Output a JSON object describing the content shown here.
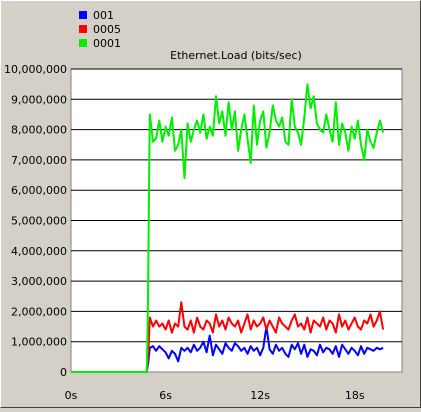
{
  "chart_data": {
    "type": "line",
    "title": "Ethernet.Load (bits/sec)",
    "ylim": [
      0,
      10000000
    ],
    "yticks": [
      0,
      1000000,
      2000000,
      3000000,
      4000000,
      5000000,
      6000000,
      7000000,
      8000000,
      9000000,
      10000000
    ],
    "ytick_labels": [
      "0",
      "1,000,000",
      "2,000,000",
      "3,000,000",
      "4,000,000",
      "5,000,000",
      "6,000,000",
      "7,000,000",
      "8,000,000",
      "9,000,000",
      "10,000,000"
    ],
    "xlim": [
      0,
      21
    ],
    "xticks": [
      0,
      6,
      12,
      18
    ],
    "xtick_labels": [
      "0s",
      "6s",
      "12s",
      "18s"
    ],
    "grid": "horizontal",
    "legend_position": "top-left",
    "series": [
      {
        "name": "001",
        "color": "#0000ff",
        "x": [
          0,
          0.5,
          1,
          1.5,
          2,
          2.5,
          3,
          3.5,
          4,
          4.5,
          4.8,
          4.9,
          5.0,
          5.2,
          5.4,
          5.6,
          5.8,
          6.0,
          6.2,
          6.4,
          6.6,
          6.8,
          7.0,
          7.2,
          7.4,
          7.6,
          7.8,
          8.0,
          8.2,
          8.4,
          8.6,
          8.8,
          9.0,
          9.2,
          9.4,
          9.6,
          9.8,
          10.0,
          10.2,
          10.4,
          10.6,
          10.8,
          11.0,
          11.2,
          11.4,
          11.6,
          11.8,
          12.0,
          12.2,
          12.4,
          12.6,
          12.8,
          13.0,
          13.2,
          13.4,
          13.6,
          13.8,
          14.0,
          14.2,
          14.4,
          14.6,
          14.8,
          15.0,
          15.2,
          15.4,
          15.6,
          15.8,
          16.0,
          16.2,
          16.4,
          16.6,
          16.8,
          17.0,
          17.2,
          17.4,
          17.6,
          17.8,
          18.0,
          18.2,
          18.4,
          18.6,
          18.8,
          19.0,
          19.2,
          19.4,
          19.6,
          19.8
        ],
        "values": [
          0,
          0,
          0,
          0,
          0,
          0,
          0,
          0,
          0,
          0,
          0,
          300000,
          800000,
          850000,
          700000,
          850000,
          750000,
          650000,
          450000,
          700000,
          600000,
          350000,
          800000,
          700000,
          800000,
          650000,
          900000,
          700000,
          800000,
          1000000,
          650000,
          1200000,
          550000,
          900000,
          750000,
          600000,
          950000,
          800000,
          700000,
          950000,
          850000,
          700000,
          800000,
          600000,
          850000,
          700000,
          800000,
          550000,
          800000,
          1500000,
          750000,
          600000,
          900000,
          700000,
          800000,
          600000,
          500000,
          900000,
          750000,
          950000,
          600000,
          900000,
          500000,
          750000,
          700000,
          550000,
          900000,
          650000,
          800000,
          750000,
          600000,
          850000,
          500000,
          900000,
          750000,
          600000,
          800000,
          700000,
          550000,
          850000,
          600000,
          800000,
          750000,
          700000,
          800000,
          750000,
          800000
        ]
      },
      {
        "name": "0005",
        "color": "#ff0000",
        "x": [
          0,
          0.5,
          1,
          1.5,
          2,
          2.5,
          3,
          3.5,
          4,
          4.5,
          4.8,
          4.9,
          5.0,
          5.2,
          5.4,
          5.6,
          5.8,
          6.0,
          6.2,
          6.4,
          6.6,
          6.8,
          7.0,
          7.2,
          7.4,
          7.6,
          7.8,
          8.0,
          8.2,
          8.4,
          8.6,
          8.8,
          9.0,
          9.2,
          9.4,
          9.6,
          9.8,
          10.0,
          10.2,
          10.4,
          10.6,
          10.8,
          11.0,
          11.2,
          11.4,
          11.6,
          11.8,
          12.0,
          12.2,
          12.4,
          12.6,
          12.8,
          13.0,
          13.2,
          13.4,
          13.6,
          13.8,
          14.0,
          14.2,
          14.4,
          14.6,
          14.8,
          15.0,
          15.2,
          15.4,
          15.6,
          15.8,
          16.0,
          16.2,
          16.4,
          16.6,
          16.8,
          17.0,
          17.2,
          17.4,
          17.6,
          17.8,
          18.0,
          18.2,
          18.4,
          18.6,
          18.8,
          19.0,
          19.2,
          19.4,
          19.6,
          19.8
        ],
        "values": [
          0,
          0,
          0,
          0,
          0,
          0,
          0,
          0,
          0,
          0,
          0,
          500000,
          1800000,
          1500000,
          1700000,
          1500000,
          1600000,
          1400000,
          1700000,
          1300000,
          1600000,
          1500000,
          2300000,
          1500000,
          1400000,
          1700000,
          1300000,
          1800000,
          1500000,
          1400000,
          1700000,
          1600000,
          1300000,
          1900000,
          1500000,
          1700000,
          1400000,
          1800000,
          1600000,
          1500000,
          1700000,
          1300000,
          1600000,
          1900000,
          1400000,
          1700000,
          1500000,
          1600000,
          1800000,
          1400000,
          1700000,
          1500000,
          1300000,
          1800000,
          1600000,
          1500000,
          1400000,
          1700000,
          1900000,
          1500000,
          1600000,
          1400000,
          1800000,
          1300000,
          1700000,
          1600000,
          1500000,
          1800000,
          1400000,
          1700000,
          1600000,
          1300000,
          1900000,
          1500000,
          1700000,
          1400000,
          1600000,
          1800000,
          1500000,
          1400000,
          1700000,
          1600000,
          1900000,
          1500000,
          1700000,
          2000000,
          1400000
        ]
      },
      {
        "name": "0001",
        "color": "#00ee00",
        "x": [
          0,
          0.5,
          1,
          1.5,
          2,
          2.5,
          3,
          3.5,
          4,
          4.5,
          4.8,
          4.85,
          4.9,
          4.95,
          5.0,
          5.2,
          5.4,
          5.6,
          5.8,
          6.0,
          6.2,
          6.4,
          6.6,
          6.8,
          7.0,
          7.2,
          7.4,
          7.6,
          7.8,
          8.0,
          8.2,
          8.4,
          8.6,
          8.8,
          9.0,
          9.2,
          9.4,
          9.6,
          9.8,
          10.0,
          10.2,
          10.4,
          10.6,
          10.8,
          11.0,
          11.2,
          11.4,
          11.6,
          11.8,
          12.0,
          12.2,
          12.4,
          12.6,
          12.8,
          13.0,
          13.2,
          13.4,
          13.6,
          13.8,
          14.0,
          14.2,
          14.4,
          14.6,
          14.8,
          15.0,
          15.2,
          15.4,
          15.6,
          15.8,
          16.0,
          16.2,
          16.4,
          16.6,
          16.8,
          17.0,
          17.2,
          17.4,
          17.6,
          17.8,
          18.0,
          18.2,
          18.4,
          18.6,
          18.8,
          19.0,
          19.2,
          19.4,
          19.6,
          19.8
        ],
        "values": [
          0,
          0,
          0,
          0,
          0,
          0,
          0,
          0,
          0,
          0,
          0,
          1000000,
          3000000,
          6000000,
          8500000,
          7600000,
          7700000,
          8300000,
          7600000,
          8100000,
          7800000,
          8400000,
          7300000,
          7500000,
          8000000,
          6400000,
          8200000,
          7600000,
          8000000,
          8300000,
          7900000,
          8500000,
          7700000,
          8100000,
          7800000,
          9100000,
          8200000,
          8600000,
          7800000,
          8900000,
          8000000,
          8600000,
          7300000,
          8000000,
          8500000,
          7700000,
          6900000,
          8800000,
          7500000,
          8300000,
          8600000,
          7400000,
          7900000,
          8800000,
          8300000,
          8100000,
          8400000,
          7600000,
          7500000,
          9000000,
          8100000,
          7900000,
          7500000,
          8400000,
          9500000,
          8700000,
          9100000,
          8200000,
          8000000,
          7900000,
          8500000,
          8000000,
          7600000,
          8900000,
          7500000,
          8200000,
          7900000,
          7300000,
          8100000,
          7700000,
          8300000,
          7500000,
          7000000,
          8000000,
          7600000,
          7400000,
          7900000,
          8300000,
          7900000
        ]
      }
    ]
  }
}
